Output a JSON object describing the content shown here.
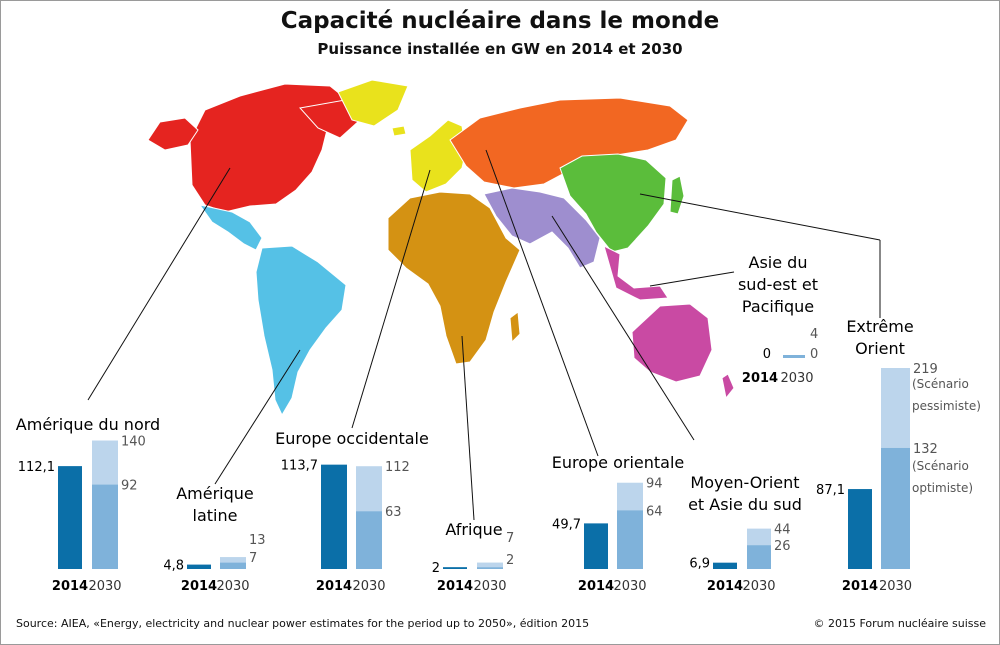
{
  "header": {
    "title": "Capacité nucléaire dans le monde",
    "subtitle": "Puissance installée en GW en 2014 et 2030"
  },
  "footer": {
    "source": "Source: AIEA, «Energy, electricity and nuclear power estimates for the period up to 2050», édition 2015",
    "copyright": "© 2015 Forum nucléaire suisse"
  },
  "colors": {
    "bar_2014": "#0b6fa8",
    "bar_2030_low": "#7fb2da",
    "bar_2030_high": "#bcd5ec",
    "north_america": "#e52420",
    "latin_america": "#55c1e6",
    "western_europe": "#e9e21c",
    "eastern_europe": "#f26722",
    "africa": "#d49213",
    "middle_east_south_asia": "#9e8ecf",
    "far_east": "#5bbd3b",
    "southeast_asia_pacific": "#c94aa3"
  },
  "chart_data": {
    "type": "bar",
    "title": "Capacité nucléaire dans le monde",
    "subtitle": "Puissance installée en GW en 2014 et 2030",
    "categories": [
      "Amérique du nord",
      "Amérique latine",
      "Europe occidentale",
      "Afrique",
      "Europe orientale",
      "Moyen-Orient et Asie du sud",
      "Extrême Orient",
      "Asie du sud-est et Pacifique"
    ],
    "x_labels": [
      "2014",
      "2030"
    ],
    "series": [
      {
        "name": "2014",
        "values": [
          112.1,
          4.8,
          113.7,
          2,
          49.7,
          6.9,
          87.1,
          0
        ]
      },
      {
        "name": "2030 low",
        "values": [
          92,
          7,
          63,
          2,
          64,
          26,
          132,
          0
        ]
      },
      {
        "name": "2030 high",
        "values": [
          140,
          13,
          112,
          7,
          94,
          44,
          219,
          4
        ]
      }
    ],
    "labels_2014": [
      "112,1",
      "4,8",
      "113,7",
      "2",
      "49,7",
      "6,9",
      "87,1",
      "0"
    ],
    "labels_2030_low": [
      "92",
      "7",
      "63",
      "2",
      "64",
      "26",
      "132",
      "0"
    ],
    "labels_2030_high": [
      "140",
      "13",
      "112",
      "7",
      "94",
      "44",
      "219",
      "4"
    ],
    "annotations": {
      "high": [
        "(Scénario",
        "pessimiste)"
      ],
      "low": [
        "(Scénario",
        "optimiste)"
      ]
    },
    "regions": [
      {
        "key": "na",
        "label_lines": [
          "Amérique du nord"
        ]
      },
      {
        "key": "la",
        "label_lines": [
          "Amérique",
          "latine"
        ]
      },
      {
        "key": "we",
        "label_lines": [
          "Europe occidentale"
        ]
      },
      {
        "key": "af",
        "label_lines": [
          "Afrique"
        ]
      },
      {
        "key": "ee",
        "label_lines": [
          "Europe orientale"
        ]
      },
      {
        "key": "me",
        "label_lines": [
          "Moyen-Orient",
          "et Asie du sud"
        ]
      },
      {
        "key": "fe",
        "label_lines": [
          "Extrême",
          "Orient"
        ]
      },
      {
        "key": "sea",
        "label_lines": [
          "Asie du",
          "sud-est et",
          "Pacifique"
        ]
      }
    ]
  }
}
